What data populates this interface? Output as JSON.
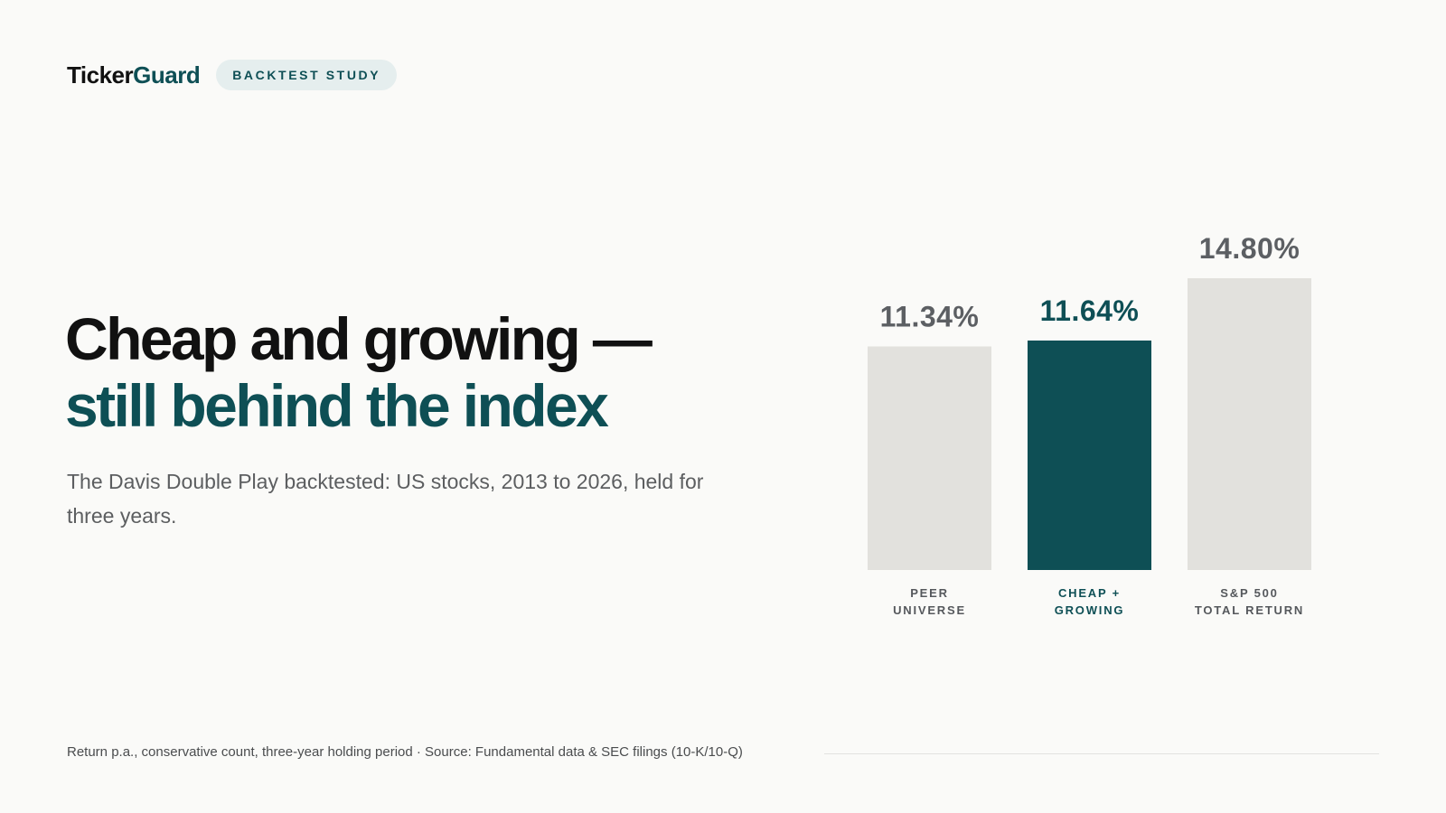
{
  "brand": {
    "name_part1": "Ticker",
    "name_part2": "Guard",
    "badge": "BACKTEST STUDY"
  },
  "headline": {
    "line1": "Cheap and growing —",
    "line2": "still behind the index"
  },
  "subtitle": "The Davis Double Play backtested: US stocks, 2013 to 2026, held for three years.",
  "footer": "Return p.a., conservative count, three-year holding period · Source: Fundamental data & SEC filings (10-K/10-Q)",
  "colors": {
    "accent": "#0e4f55",
    "bar_neutral": "#e2e1dd",
    "value_neutral": "#5c5f63",
    "label_neutral": "#55585c",
    "background": "#fafaf8"
  },
  "chart_data": {
    "type": "bar",
    "title": "",
    "xlabel": "",
    "ylabel": "",
    "categories": [
      {
        "line1": "PEER",
        "line2": "UNIVERSE"
      },
      {
        "line1": "CHEAP +",
        "line2": "GROWING"
      },
      {
        "line1": "S&P 500",
        "line2": "TOTAL RETURN"
      }
    ],
    "values": [
      11.34,
      11.64,
      14.8
    ],
    "value_labels": [
      "11.34%",
      "11.64%",
      "14.80%"
    ],
    "highlight_index": 1,
    "unit": "%",
    "ylim": [
      0,
      14.8
    ],
    "grid": false,
    "legend": "none"
  }
}
